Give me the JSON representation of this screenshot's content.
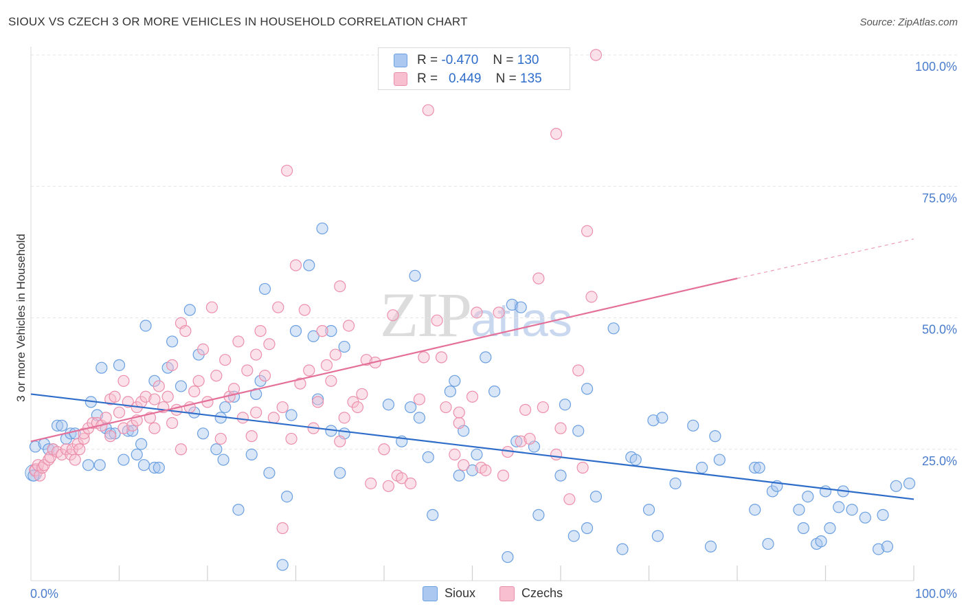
{
  "header": {
    "title": "SIOUX VS CZECH 3 OR MORE VEHICLES IN HOUSEHOLD CORRELATION CHART",
    "source": "Source: ZipAtlas.com"
  },
  "watermark": {
    "zip": "ZIP",
    "atlas": "atlas"
  },
  "legend": {
    "rows": [
      {
        "r_label": "R =",
        "r_value": "-0.470",
        "n_label": "N =",
        "n_value": "130"
      },
      {
        "r_label": "R =",
        "r_value": "0.449",
        "n_label": "N =",
        "n_value": "135"
      }
    ],
    "bottom": [
      "Sioux",
      "Czechs"
    ]
  },
  "colors": {
    "sioux_fill": "#aac8f0",
    "sioux_stroke": "#6a9fe0",
    "sioux_line": "#2e6cc9",
    "czech_fill": "#f7bfd0",
    "czech_stroke": "#ec8fab",
    "czech_line": "#e4709a",
    "axis_text": "#4a7ccc"
  },
  "chart_data": {
    "type": "scatter",
    "title": "SIOUX VS CZECH 3 OR MORE VEHICLES IN HOUSEHOLD CORRELATION CHART",
    "xlabel": "",
    "ylabel": "3 or more Vehicles in Household",
    "xlim": [
      0,
      100
    ],
    "ylim": [
      0,
      100
    ],
    "x_tick_labels": [
      {
        "value": 0,
        "label": "0.0%"
      },
      {
        "value": 100,
        "label": "100.0%"
      }
    ],
    "y_tick_labels": [
      {
        "value": 25,
        "label": "25.0%"
      },
      {
        "value": 50,
        "label": "50.0%"
      },
      {
        "value": 75,
        "label": "75.0%"
      },
      {
        "value": 100,
        "label": "100.0%"
      }
    ],
    "grid": "horizontal dashed",
    "legend_position": "top-center",
    "series": [
      {
        "name": "Sioux",
        "color": "#6a9fe0",
        "trend": {
          "x": [
            0,
            100
          ],
          "y": [
            35.5,
            15.5
          ]
        },
        "points": [
          [
            0.3,
            20
          ],
          [
            0.5,
            25.5
          ],
          [
            1.5,
            26
          ],
          [
            2,
            25
          ],
          [
            2.5,
            25
          ],
          [
            3,
            29.5
          ],
          [
            3.5,
            29.5
          ],
          [
            4,
            27
          ],
          [
            4.5,
            28
          ],
          [
            5,
            28
          ],
          [
            6.5,
            22
          ],
          [
            6.8,
            34
          ],
          [
            7.5,
            31.5
          ],
          [
            7.8,
            22
          ],
          [
            8,
            40.5
          ],
          [
            8.5,
            29
          ],
          [
            9,
            28
          ],
          [
            9.5,
            28
          ],
          [
            10,
            41
          ],
          [
            10.5,
            23
          ],
          [
            11,
            28.5
          ],
          [
            11.5,
            28.5
          ],
          [
            12,
            24
          ],
          [
            12.5,
            26
          ],
          [
            12.8,
            22
          ],
          [
            13,
            48.5
          ],
          [
            14,
            21.5
          ],
          [
            14,
            38
          ],
          [
            14.5,
            21.5
          ],
          [
            15.5,
            40.5
          ],
          [
            16,
            45.5
          ],
          [
            17,
            37
          ],
          [
            18,
            51.5
          ],
          [
            18.5,
            32
          ],
          [
            19,
            43
          ],
          [
            19.5,
            28
          ],
          [
            21,
            25
          ],
          [
            21.5,
            31
          ],
          [
            21.8,
            23
          ],
          [
            22,
            33
          ],
          [
            23,
            35
          ],
          [
            23.5,
            13.5
          ],
          [
            25,
            24
          ],
          [
            25.5,
            35.5
          ],
          [
            26,
            38
          ],
          [
            26.5,
            55.5
          ],
          [
            27,
            20.5
          ],
          [
            28.5,
            3
          ],
          [
            29,
            16
          ],
          [
            29.5,
            31.5
          ],
          [
            30,
            47.5
          ],
          [
            31.5,
            60
          ],
          [
            32,
            46.5
          ],
          [
            32.5,
            34.5
          ],
          [
            33,
            67
          ],
          [
            34,
            28.5
          ],
          [
            34,
            47.5
          ],
          [
            35,
            20.5
          ],
          [
            35.5,
            44.5
          ],
          [
            35.5,
            28
          ],
          [
            40.5,
            33.5
          ],
          [
            42,
            26.5
          ],
          [
            43,
            33
          ],
          [
            43.5,
            58
          ],
          [
            44,
            31
          ],
          [
            45,
            23.5
          ],
          [
            45.5,
            12.5
          ],
          [
            47.5,
            36
          ],
          [
            48,
            38
          ],
          [
            48.5,
            20
          ],
          [
            49,
            28.5
          ],
          [
            50,
            21
          ],
          [
            50.5,
            24
          ],
          [
            51.5,
            42.5
          ],
          [
            52.5,
            36
          ],
          [
            54,
            4.5
          ],
          [
            54.5,
            52.5
          ],
          [
            55,
            26.5
          ],
          [
            55.5,
            52
          ],
          [
            57,
            25.5
          ],
          [
            57.5,
            12.5
          ],
          [
            60,
            20
          ],
          [
            60.5,
            33.5
          ],
          [
            61.5,
            8.5
          ],
          [
            62,
            28.5
          ],
          [
            63,
            36.5
          ],
          [
            63,
            10
          ],
          [
            64,
            16
          ],
          [
            66,
            48
          ],
          [
            67,
            6
          ],
          [
            68,
            23.5
          ],
          [
            68.5,
            23
          ],
          [
            70,
            13.5
          ],
          [
            70.5,
            30.5
          ],
          [
            71,
            8.5
          ],
          [
            71.5,
            31
          ],
          [
            73,
            18.5
          ],
          [
            75,
            29.5
          ],
          [
            76,
            21.5
          ],
          [
            77,
            6.5
          ],
          [
            77.5,
            27.5
          ],
          [
            78,
            23
          ],
          [
            82,
            13.5
          ],
          [
            82,
            21.5
          ],
          [
            82.5,
            21.5
          ],
          [
            83.5,
            7
          ],
          [
            84,
            17
          ],
          [
            84.5,
            18
          ],
          [
            87,
            13.5
          ],
          [
            87.5,
            10
          ],
          [
            88,
            16
          ],
          [
            89,
            7
          ],
          [
            89.5,
            7.5
          ],
          [
            90,
            17
          ],
          [
            90.5,
            10
          ],
          [
            91.5,
            14
          ],
          [
            92,
            17
          ],
          [
            93,
            13.5
          ],
          [
            94.5,
            12
          ],
          [
            96,
            6
          ],
          [
            96.5,
            12.5
          ],
          [
            97,
            6.5
          ],
          [
            98,
            18
          ],
          [
            99.5,
            18.5
          ]
        ]
      },
      {
        "name": "Czechs",
        "color": "#ec8fab",
        "trend": {
          "x": [
            0,
            80
          ],
          "y": [
            26.5,
            57.5
          ],
          "dashed_extension": {
            "x": [
              80,
              100
            ],
            "y": [
              57.5,
              65
            ]
          }
        },
        "points": [
          [
            0.5,
            21
          ],
          [
            0.8,
            22
          ],
          [
            1,
            20
          ],
          [
            1.3,
            21.5
          ],
          [
            1.5,
            22
          ],
          [
            2,
            23
          ],
          [
            2.2,
            23.5
          ],
          [
            2.5,
            25
          ],
          [
            3,
            24.5
          ],
          [
            3.5,
            24
          ],
          [
            4,
            25
          ],
          [
            4.5,
            24
          ],
          [
            4.7,
            25
          ],
          [
            5,
            23
          ],
          [
            5.3,
            26
          ],
          [
            5.5,
            25
          ],
          [
            6,
            27
          ],
          [
            6,
            28
          ],
          [
            6.5,
            29
          ],
          [
            7,
            30
          ],
          [
            7.5,
            30
          ],
          [
            8,
            29.5
          ],
          [
            8.5,
            31
          ],
          [
            9,
            27.5
          ],
          [
            9,
            34.5
          ],
          [
            9.5,
            35
          ],
          [
            10,
            32
          ],
          [
            10.5,
            38
          ],
          [
            10.5,
            29
          ],
          [
            11,
            34
          ],
          [
            11.5,
            29.5
          ],
          [
            12,
            30.5
          ],
          [
            12,
            33
          ],
          [
            12.5,
            34
          ],
          [
            13,
            35
          ],
          [
            13.5,
            31
          ],
          [
            14,
            34.5
          ],
          [
            14,
            29
          ],
          [
            14.5,
            37
          ],
          [
            15,
            33
          ],
          [
            15.5,
            35
          ],
          [
            16,
            41
          ],
          [
            16,
            30
          ],
          [
            16.5,
            32.5
          ],
          [
            17,
            49
          ],
          [
            17,
            25
          ],
          [
            17.5,
            47.5
          ],
          [
            18,
            33
          ],
          [
            18.5,
            36
          ],
          [
            19,
            38
          ],
          [
            19.5,
            44
          ],
          [
            20,
            34
          ],
          [
            20.5,
            52
          ],
          [
            21,
            39
          ],
          [
            21.5,
            27
          ],
          [
            22,
            42
          ],
          [
            22.5,
            35
          ],
          [
            23,
            36.5
          ],
          [
            23.5,
            45.5
          ],
          [
            24,
            31
          ],
          [
            24.5,
            40
          ],
          [
            25,
            27.5
          ],
          [
            25.5,
            32
          ],
          [
            25.5,
            43
          ],
          [
            26,
            47.5
          ],
          [
            26.5,
            39
          ],
          [
            27,
            45
          ],
          [
            27.5,
            31
          ],
          [
            28,
            52
          ],
          [
            28.5,
            33
          ],
          [
            28.5,
            10
          ],
          [
            29,
            78
          ],
          [
            29.5,
            27
          ],
          [
            30,
            60
          ],
          [
            30.5,
            37.5
          ],
          [
            31,
            51.5
          ],
          [
            31.5,
            40
          ],
          [
            32,
            29
          ],
          [
            32.5,
            34
          ],
          [
            33,
            47.5
          ],
          [
            33.5,
            41
          ],
          [
            34,
            38
          ],
          [
            34.5,
            43
          ],
          [
            35,
            26.5
          ],
          [
            35,
            56
          ],
          [
            35.5,
            31
          ],
          [
            36,
            48.5
          ],
          [
            36.5,
            34
          ],
          [
            37,
            33
          ],
          [
            37.5,
            35.5
          ],
          [
            38,
            42
          ],
          [
            38.5,
            18.5
          ],
          [
            39,
            41.5
          ],
          [
            40,
            25
          ],
          [
            40.5,
            18
          ],
          [
            41,
            50.5
          ],
          [
            41.5,
            20
          ],
          [
            42,
            19.5
          ],
          [
            43,
            18.5
          ],
          [
            44,
            34.5
          ],
          [
            44.5,
            42.5
          ],
          [
            45,
            89.5
          ],
          [
            46,
            49.5
          ],
          [
            46.5,
            42.5
          ],
          [
            47,
            33
          ],
          [
            48,
            24
          ],
          [
            48.5,
            30
          ],
          [
            48.5,
            32
          ],
          [
            49,
            22
          ],
          [
            50,
            35
          ],
          [
            50.5,
            51
          ],
          [
            51,
            21.5
          ],
          [
            51.5,
            21
          ],
          [
            53,
            51
          ],
          [
            53.5,
            20
          ],
          [
            54,
            24.5
          ],
          [
            55.5,
            26.5
          ],
          [
            56,
            32.5
          ],
          [
            56.5,
            27
          ],
          [
            57.5,
            57.5
          ],
          [
            58,
            33
          ],
          [
            59.5,
            85
          ],
          [
            59.5,
            24
          ],
          [
            60,
            29
          ],
          [
            61,
            15.5
          ],
          [
            62,
            40
          ],
          [
            62.5,
            21.5
          ],
          [
            63,
            66.5
          ],
          [
            63.5,
            54
          ],
          [
            64,
            100
          ]
        ]
      }
    ]
  }
}
